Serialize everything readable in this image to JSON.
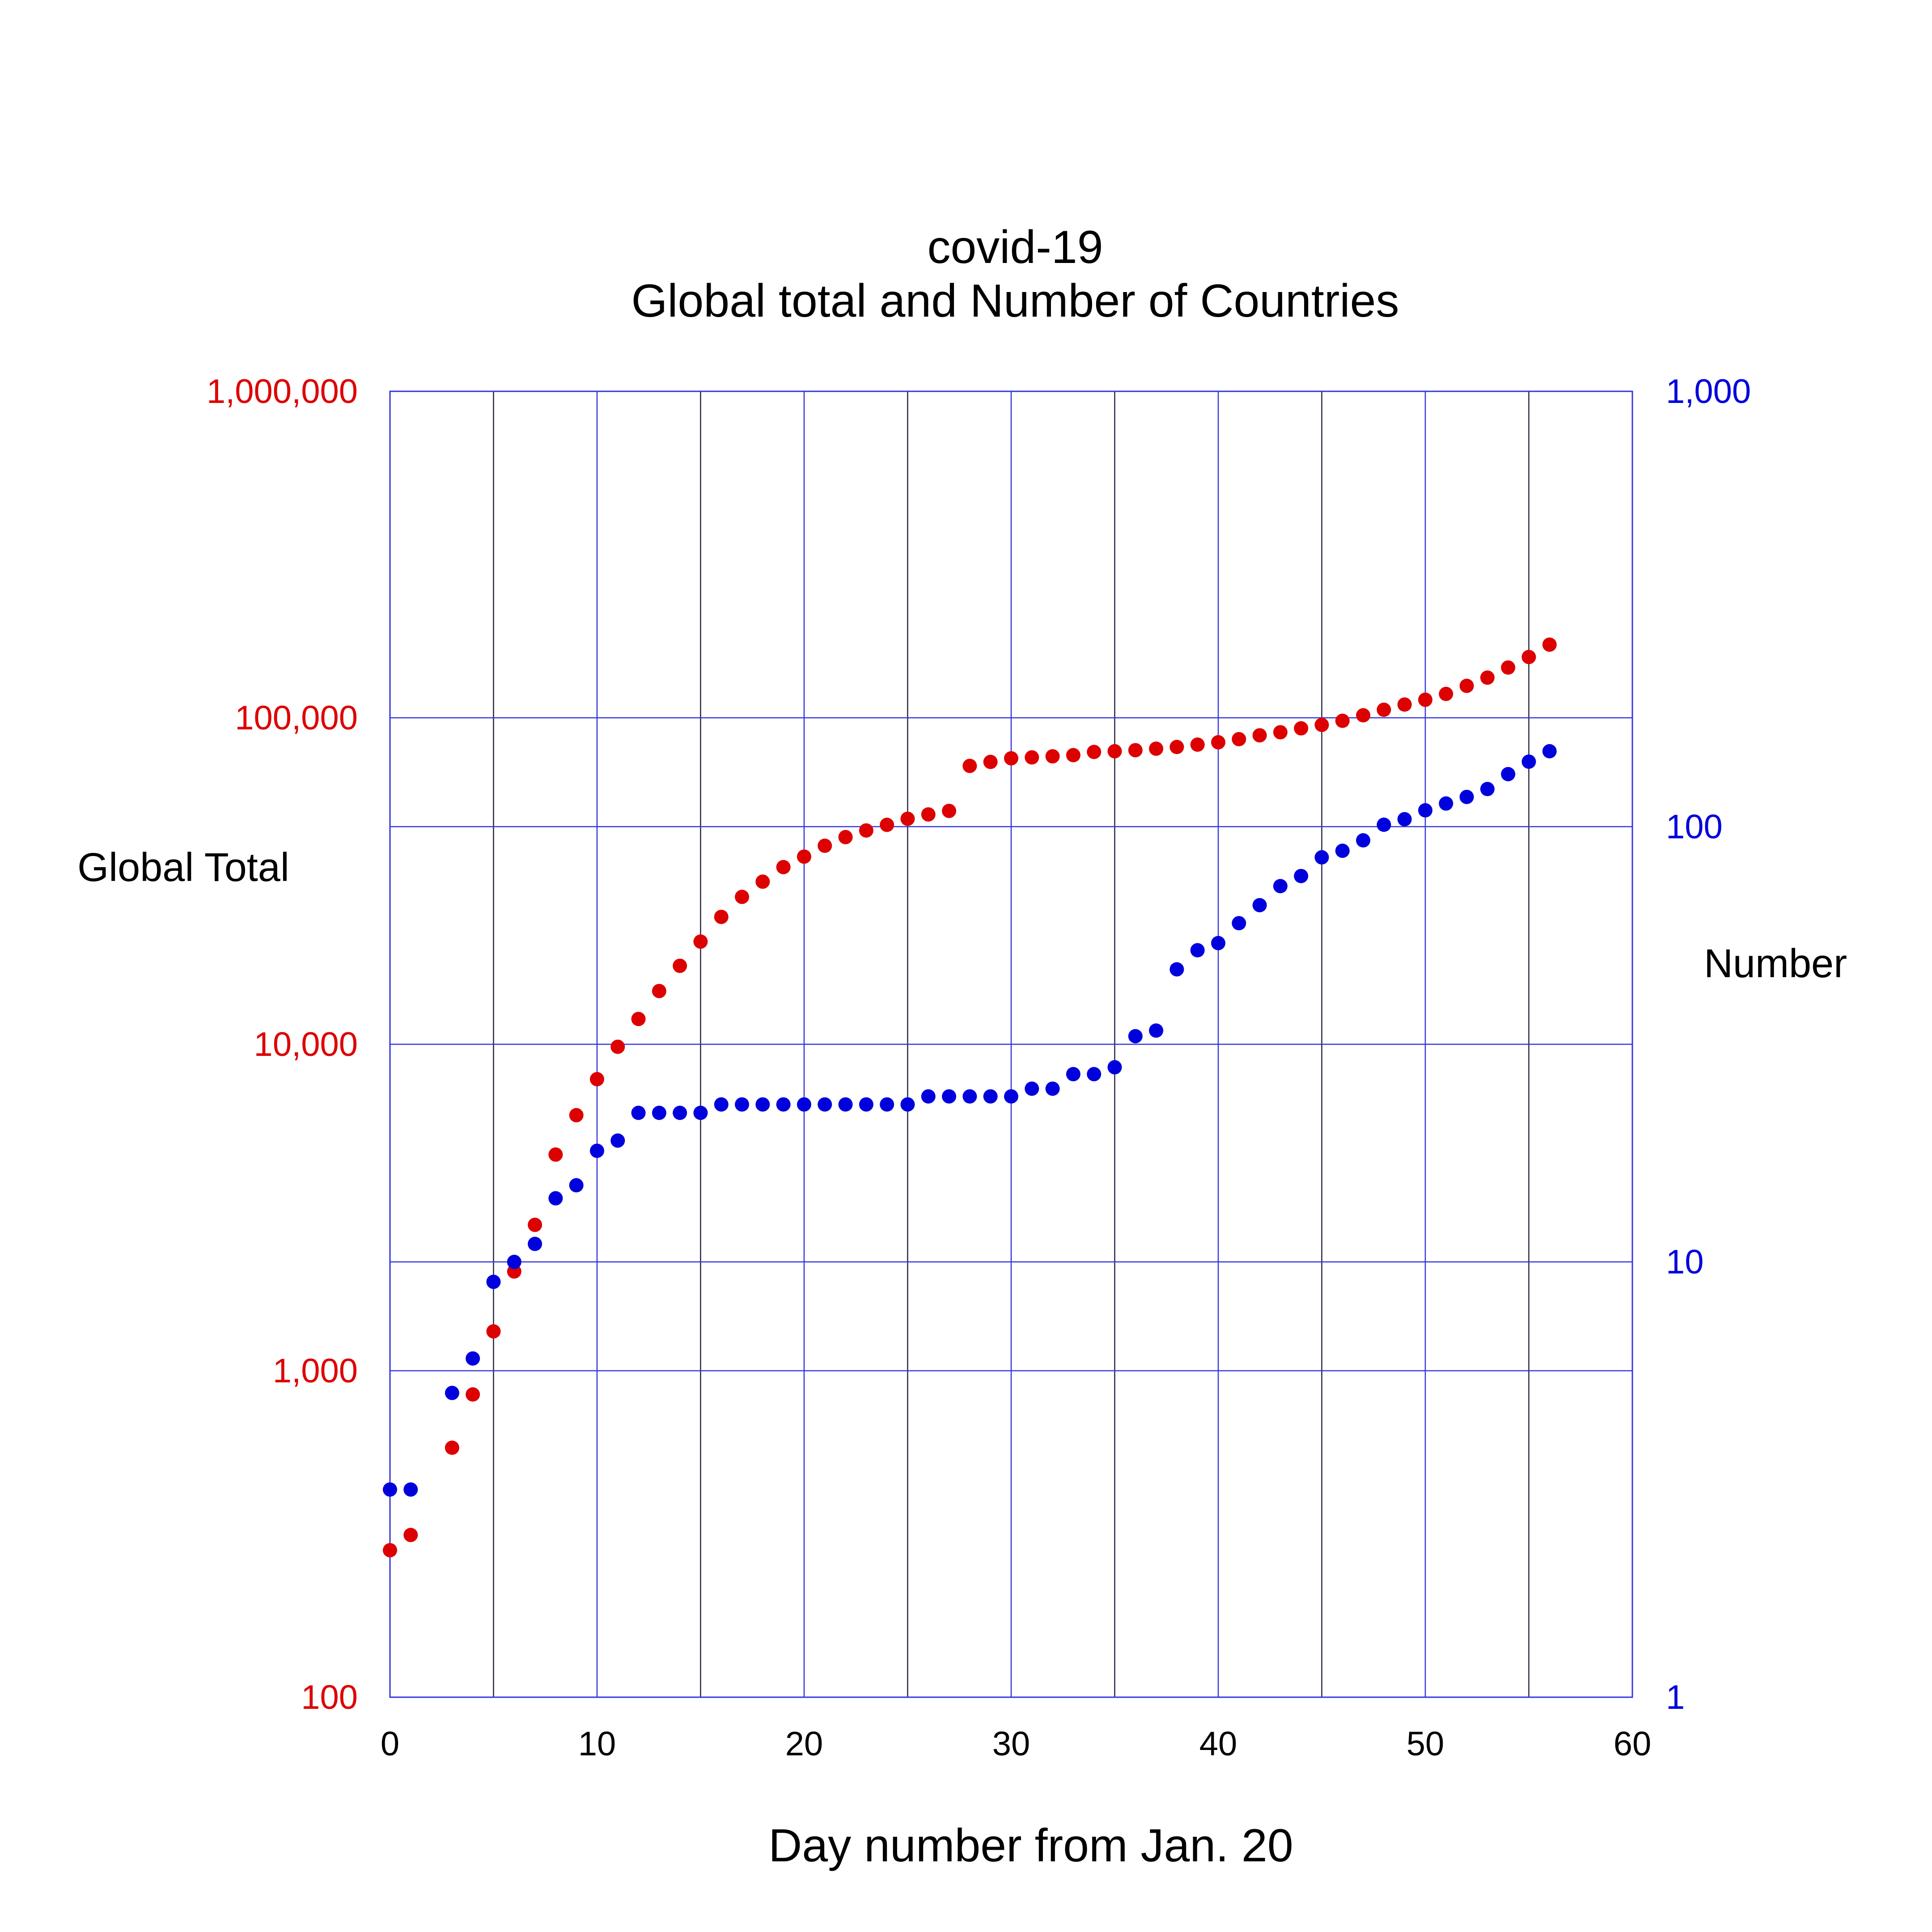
{
  "chart_data": {
    "type": "scatter",
    "title": "covid-19",
    "subtitle": "Global total and Number of Countries",
    "xlabel": "Day number from Jan. 20",
    "ylabel_left": "Global Total",
    "ylabel_right": "Number",
    "xlim": [
      0,
      60
    ],
    "x_ticks": [
      0,
      10,
      20,
      30,
      40,
      50,
      60
    ],
    "x_tick_labels": [
      "0",
      "10",
      "20",
      "30",
      "40",
      "50",
      "60"
    ],
    "ylim_left": [
      100,
      1000000
    ],
    "y_scale_left": "log",
    "y_ticks_left": [
      100,
      1000,
      10000,
      100000,
      1000000
    ],
    "y_tick_labels_left": [
      "100",
      "1,000",
      "10,000",
      "100,000",
      "1,000,000"
    ],
    "ylim_right": [
      1,
      1000
    ],
    "y_scale_right": "log",
    "y_ticks_right": [
      1,
      10,
      100,
      1000
    ],
    "y_tick_labels_right": [
      "1",
      "10",
      "100",
      "1,000"
    ],
    "grid": true,
    "colors": {
      "left_series": "#dd0000",
      "right_series": "#0000dd",
      "grid_h": "#3333dd",
      "grid_v_major": "#3333dd",
      "grid_v_minor": "#222244",
      "text": "#000000"
    },
    "series": [
      {
        "name": "Global Total",
        "axis": "left",
        "x": [
          0,
          1,
          3,
          4,
          5,
          6,
          7,
          8,
          9,
          10,
          11,
          12,
          13,
          14,
          15,
          16,
          17,
          18,
          19,
          20,
          21,
          22,
          23,
          24,
          25,
          26,
          27,
          28,
          29,
          30,
          31,
          32,
          33,
          34,
          35,
          36,
          37,
          38,
          39,
          40,
          41,
          42,
          43,
          44,
          45,
          46,
          47,
          48,
          49,
          50,
          51,
          52,
          53,
          54,
          55,
          56
        ],
        "y": [
          282,
          314,
          581,
          846,
          1320,
          2014,
          2798,
          4593,
          6065,
          7818,
          9826,
          11953,
          14557,
          17391,
          20630,
          24554,
          28276,
          31481,
          34886,
          37558,
          40554,
          43103,
          45171,
          46997,
          49053,
          50580,
          51857,
          71226,
          73260,
          75138,
          75641,
          76199,
          76843,
          78599,
          78985,
          79570,
          80415,
          81397,
          82756,
          84124,
          86013,
          88371,
          90309,
          92844,
          95124,
          97886,
          101784,
          105837,
          109795,
          113561,
          118326,
          125260,
          132758,
          142539,
          153517,
          167511
        ]
      },
      {
        "name": "Number",
        "axis": "right",
        "x": [
          0,
          1,
          3,
          4,
          5,
          6,
          7,
          8,
          9,
          10,
          11,
          12,
          13,
          14,
          15,
          16,
          17,
          18,
          19,
          20,
          21,
          22,
          23,
          24,
          25,
          26,
          27,
          28,
          29,
          30,
          31,
          32,
          33,
          34,
          35,
          36,
          37,
          38,
          39,
          40,
          41,
          42,
          43,
          44,
          45,
          46,
          47,
          48,
          49,
          50,
          51,
          52,
          53,
          54,
          55,
          56
        ],
        "y": [
          3,
          3,
          5,
          6,
          9,
          10,
          11,
          14,
          15,
          18,
          19,
          22,
          22,
          22,
          22,
          23,
          23,
          23,
          23,
          23,
          23,
          23,
          23,
          23,
          23,
          24,
          24,
          24,
          24,
          24,
          25,
          25,
          27,
          27,
          28,
          33,
          34,
          47,
          52,
          54,
          60,
          66,
          73,
          77,
          85,
          88,
          93,
          101,
          104,
          109,
          113,
          117,
          122,
          132,
          141,
          149
        ]
      }
    ]
  }
}
